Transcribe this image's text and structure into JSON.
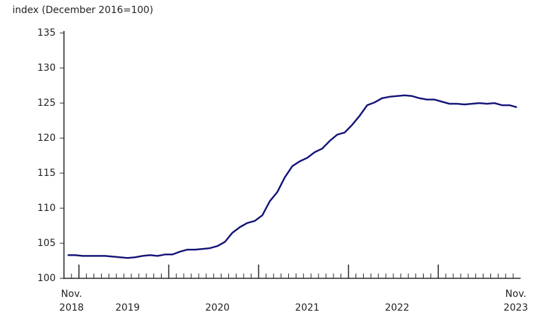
{
  "chart_data": {
    "type": "line",
    "y_axis_label": "index (December 2016=100)",
    "categories": [
      "Nov. 2018",
      null,
      null,
      null,
      null,
      null,
      null,
      null,
      "2019",
      null,
      null,
      null,
      null,
      null,
      null,
      null,
      null,
      null,
      null,
      null,
      "2020",
      null,
      null,
      null,
      null,
      null,
      null,
      null,
      null,
      null,
      null,
      null,
      "2021",
      null,
      null,
      null,
      null,
      null,
      null,
      null,
      null,
      null,
      null,
      null,
      "2022",
      null,
      null,
      null,
      null,
      null,
      null,
      null,
      null,
      null,
      null,
      null,
      null,
      null,
      null,
      null,
      "Nov. 2023"
    ],
    "series": [
      {
        "color": "#141478",
        "values": [
          103.3,
          103.3,
          103.2,
          103.2,
          103.2,
          103.2,
          103.1,
          103.0,
          102.9,
          103.0,
          103.2,
          103.3,
          103.2,
          103.4,
          103.4,
          103.8,
          104.1,
          104.1,
          104.2,
          104.3,
          104.6,
          105.2,
          106.5,
          107.3,
          107.9,
          108.2,
          109.0,
          111.0,
          112.3,
          114.4,
          116.0,
          116.7,
          117.2,
          118.0,
          118.5,
          119.6,
          120.5,
          120.8,
          121.9,
          123.2,
          124.7,
          125.1,
          125.7,
          125.9,
          126.0,
          126.1,
          126.0,
          125.7,
          125.5,
          125.5,
          125.2,
          124.9,
          124.9,
          124.8,
          124.9,
          125.0,
          124.9,
          125.0,
          124.7,
          124.7,
          124.4
        ]
      }
    ],
    "ylim": [
      100,
      135
    ],
    "yticks": [
      100,
      105,
      110,
      115,
      120,
      125,
      130,
      135
    ]
  }
}
